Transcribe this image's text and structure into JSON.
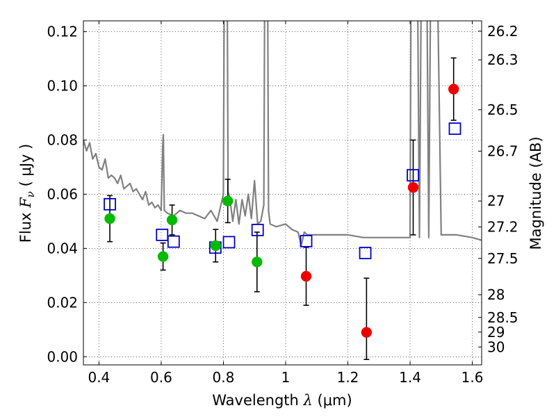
{
  "chart_data": {
    "type": "scatter",
    "xlabel": "Wavelength  λ (μm)",
    "ylabel": "Flux  Fν  ( μJy )",
    "ylabel_parts": {
      "pre": "Flux  ",
      "italic": "F",
      "sub": "ν",
      "post": "  ( μJy )"
    },
    "xlabel_parts": {
      "pre": "Wavelength  ",
      "italic": "λ",
      "post": " (μm)"
    },
    "y2label": "Magnitude (AB)",
    "xlim": [
      0.35,
      1.63
    ],
    "ylim": [
      -0.003,
      0.124
    ],
    "grid": true,
    "x_ticks": [
      0.4,
      0.6,
      0.8,
      1.0,
      1.2,
      1.4,
      1.6
    ],
    "x_tick_labels": [
      "0.4",
      "0.6",
      "0.8",
      "1",
      "1.2",
      "1.4",
      "1.6"
    ],
    "y_ticks": [
      0.0,
      0.02,
      0.04,
      0.06,
      0.08,
      0.1,
      0.12
    ],
    "y_tick_labels": [
      "0.00",
      "0.02",
      "0.04",
      "0.06",
      "0.08",
      "0.10",
      "0.12"
    ],
    "y2_ticks": [
      {
        "label": "26.2",
        "flux": 0.1202
      },
      {
        "label": "26.3",
        "flux": 0.1096
      },
      {
        "label": "26.5",
        "flux": 0.0912
      },
      {
        "label": "26.7",
        "flux": 0.0759
      },
      {
        "label": "27",
        "flux": 0.0575
      },
      {
        "label": "27.2",
        "flux": 0.0479
      },
      {
        "label": "27.5",
        "flux": 0.0363
      },
      {
        "label": "28",
        "flux": 0.0229
      },
      {
        "label": "28.5",
        "flux": 0.0145
      },
      {
        "label": "29",
        "flux": 0.0091
      },
      {
        "label": "30",
        "flux": 0.0036
      }
    ],
    "series": [
      {
        "kind": "model-spectrum",
        "color": "#808080",
        "x": [
          0.35,
          0.36,
          0.37,
          0.38,
          0.39,
          0.4,
          0.41,
          0.42,
          0.43,
          0.44,
          0.45,
          0.46,
          0.47,
          0.48,
          0.49,
          0.5,
          0.51,
          0.52,
          0.53,
          0.54,
          0.55,
          0.56,
          0.57,
          0.58,
          0.59,
          0.6,
          0.605,
          0.607,
          0.61,
          0.62,
          0.64,
          0.66,
          0.68,
          0.7,
          0.72,
          0.74,
          0.76,
          0.78,
          0.8,
          0.805,
          0.81,
          0.815,
          0.82,
          0.83,
          0.84,
          0.85,
          0.86,
          0.87,
          0.88,
          0.89,
          0.9,
          0.91,
          0.92,
          0.93,
          0.935,
          0.94,
          0.945,
          0.95,
          0.97,
          1.0,
          1.02,
          1.04,
          1.05,
          1.06,
          1.07,
          1.08,
          1.1,
          1.15,
          1.2,
          1.25,
          1.3,
          1.35,
          1.39,
          1.4,
          1.405,
          1.42,
          1.43,
          1.44,
          1.45,
          1.46,
          1.47,
          1.48,
          1.5,
          1.55,
          1.6,
          1.63
        ],
        "y": [
          0.08,
          0.076,
          0.079,
          0.073,
          0.075,
          0.07,
          0.069,
          0.073,
          0.066,
          0.067,
          0.066,
          0.064,
          0.067,
          0.062,
          0.063,
          0.064,
          0.061,
          0.062,
          0.06,
          0.058,
          0.061,
          0.056,
          0.057,
          0.055,
          0.056,
          0.054,
          0.078,
          0.082,
          0.054,
          0.053,
          0.052,
          0.054,
          0.053,
          0.053,
          0.052,
          0.051,
          0.054,
          0.05,
          0.06,
          0.2,
          0.2,
          0.061,
          0.059,
          0.05,
          0.058,
          0.049,
          0.058,
          0.052,
          0.06,
          0.051,
          0.065,
          0.049,
          0.05,
          0.056,
          0.2,
          0.2,
          0.054,
          0.049,
          0.048,
          0.049,
          0.047,
          0.046,
          0.041,
          0.046,
          0.045,
          0.045,
          0.045,
          0.045,
          0.045,
          0.044,
          0.044,
          0.044,
          0.044,
          0.044,
          0.2,
          0.2,
          0.044,
          0.2,
          0.2,
          0.044,
          0.2,
          0.2,
          0.045,
          0.045,
          0.044,
          0.043
        ]
      },
      {
        "kind": "observed",
        "marker": "circle",
        "color": "#00bb00",
        "points": [
          {
            "x": 0.435,
            "y": 0.051,
            "err_lo": 0.0085,
            "err_hi": 0.0085
          },
          {
            "x": 0.606,
            "y": 0.037,
            "err_lo": 0.005,
            "err_hi": 0.005
          },
          {
            "x": 0.635,
            "y": 0.0505,
            "err_lo": 0.0055,
            "err_hi": 0.0055
          },
          {
            "x": 0.775,
            "y": 0.041,
            "err_lo": 0.006,
            "err_hi": 0.006
          },
          {
            "x": 0.814,
            "y": 0.0575,
            "err_lo": 0.008,
            "err_hi": 0.008
          },
          {
            "x": 0.908,
            "y": 0.035,
            "err_lo": 0.011,
            "err_hi": 0.011
          }
        ]
      },
      {
        "kind": "observed",
        "marker": "circle",
        "color": "#ee0000",
        "points": [
          {
            "x": 1.066,
            "y": 0.0297,
            "err_lo": 0.0107,
            "err_hi": 0.0107
          },
          {
            "x": 1.26,
            "y": 0.009,
            "err_lo": 0.01,
            "err_hi": 0.02
          },
          {
            "x": 1.41,
            "y": 0.0625,
            "err_lo": 0.0175,
            "err_hi": 0.0175
          },
          {
            "x": 1.54,
            "y": 0.0988,
            "err_lo": 0.0115,
            "err_hi": 0.0115
          }
        ]
      },
      {
        "kind": "model-photometry",
        "marker": "open-square",
        "color": "#0000cc",
        "points": [
          {
            "x": 0.435,
            "y": 0.0563
          },
          {
            "x": 0.603,
            "y": 0.045
          },
          {
            "x": 0.64,
            "y": 0.0425
          },
          {
            "x": 0.774,
            "y": 0.0403
          },
          {
            "x": 0.818,
            "y": 0.0423
          },
          {
            "x": 0.91,
            "y": 0.0468
          },
          {
            "x": 1.066,
            "y": 0.0427
          },
          {
            "x": 1.256,
            "y": 0.0383
          },
          {
            "x": 1.409,
            "y": 0.067
          },
          {
            "x": 1.544,
            "y": 0.0842
          }
        ]
      }
    ]
  }
}
